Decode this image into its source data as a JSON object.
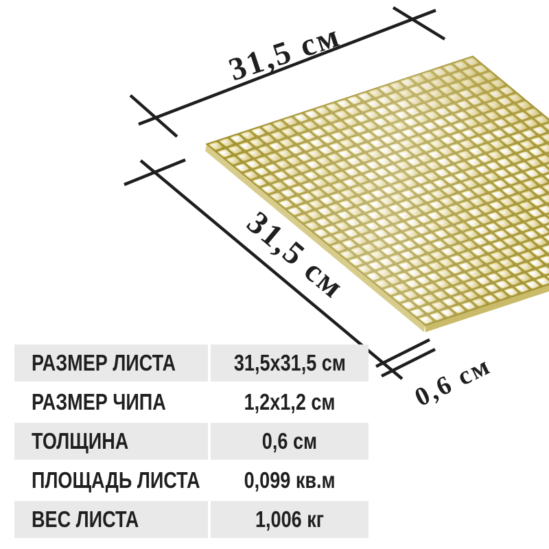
{
  "figure": {
    "dim_top_label": "31,5 см",
    "dim_left_label": "31,5 см",
    "dim_thickness_label": "0,6 см"
  },
  "table": {
    "rows": [
      {
        "label": "РАЗМЕР ЛИСТА",
        "value": "31,5x31,5 см"
      },
      {
        "label": "РАЗМЕР ЧИПА",
        "value": "1,2x1,2 см"
      },
      {
        "label": "ТОЛЩИНА",
        "value": "0,6 см"
      },
      {
        "label": "ПЛОЩАДЬ ЛИСТА",
        "value": "0,099 кв.м"
      },
      {
        "label": "ВЕС ЛИСТА",
        "value": "1,006 кг"
      }
    ]
  },
  "mosaic": {
    "rows": 25,
    "cols": 25,
    "palette": {
      "grout": "#a19030",
      "base": [
        "#e8dd8d",
        "#c7b748",
        "#a59428"
      ],
      "base_stroke": "#8d7d24",
      "pearl_bright": [
        "#ffffff",
        "#f5efdc",
        "#ddd2a0"
      ],
      "pearl_gold": [
        "#f7f0d4",
        "#e9dfb4",
        "#cfc070"
      ],
      "edge_left": "#d8cc8c",
      "edge_right": "#c9bb6a",
      "line": "#1e1e1e",
      "text": "#1f1f1f",
      "table_row_gray": "#e9e9e9",
      "table_row_white": "#ffffff"
    }
  }
}
